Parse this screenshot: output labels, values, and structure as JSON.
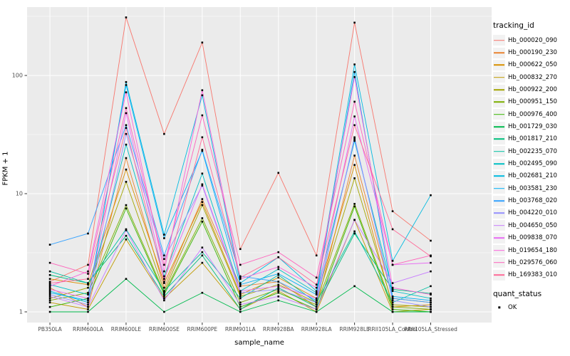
{
  "figure": {
    "y_axis": {
      "title": "FPKM + 1",
      "tick_labels": [
        "100",
        "10",
        "1"
      ],
      "tick_values": [
        100,
        10,
        1
      ]
    },
    "x_axis": {
      "title": "sample_name"
    },
    "legend": {
      "tracking_title": "tracking_id",
      "quant_title": "quant_status",
      "quant_items": [
        {
          "label": "OK",
          "marker": "black-square"
        }
      ]
    },
    "colors": {
      "panel_bg": "#EBEBEB",
      "grid": "#FFFFFF",
      "tick_text": "#4D4D4D",
      "tick_mark": "#333333",
      "point": "#000000"
    }
  },
  "chart_data": {
    "type": "line",
    "title": "",
    "xlabel": "sample_name",
    "ylabel": "FPKM + 1",
    "y_scale": "log10",
    "ylim": [
      1,
      400
    ],
    "y_ticks": [
      1,
      10,
      100
    ],
    "grid": "on",
    "legend_position": "right",
    "point_marker": {
      "shape": "square",
      "color": "#000000",
      "legend": "quant_status: OK"
    },
    "categories": [
      "PB350LA",
      "RRIM600LA",
      "RRIM600LE",
      "RRIM600SE",
      "RRIM600PE",
      "RRIM901LA",
      "RRIM928BA",
      "RRIM928LA",
      "RRIM928LE",
      "RRII105LA_Control",
      "RRII105LA_Stressed"
    ],
    "series": [
      {
        "name": "Hb_000020_090",
        "color": "#F8766D",
        "values": [
          1.8,
          2.5,
          310,
          32,
          190,
          3.4,
          15,
          3.0,
          280,
          7.1,
          4.0
        ]
      },
      {
        "name": "Hb_000190_230",
        "color": "#EA8331",
        "values": [
          1.6,
          1.1,
          20,
          1.6,
          9.0,
          1.65,
          1.8,
          1.1,
          21,
          1.3,
          1.2
        ]
      },
      {
        "name": "Hb_000622_050",
        "color": "#D89000",
        "values": [
          1.9,
          1.7,
          16,
          1.75,
          8.5,
          1.4,
          1.95,
          1.3,
          17.5,
          1.1,
          1.15
        ]
      },
      {
        "name": "Hb_000832_270",
        "color": "#C09B00",
        "values": [
          1.2,
          1.05,
          4.1,
          1.3,
          2.6,
          1.05,
          1.5,
          1.0,
          6.0,
          1.0,
          1.05
        ]
      },
      {
        "name": "Hb_000922_200",
        "color": "#A3A500",
        "values": [
          1.3,
          1.6,
          12.6,
          1.5,
          8.0,
          1.35,
          1.7,
          1.2,
          13.5,
          1.15,
          1.1
        ]
      },
      {
        "name": "Hb_000951_150",
        "color": "#7CAE00",
        "values": [
          1.25,
          1.45,
          8.0,
          1.45,
          6.2,
          1.2,
          1.55,
          1.15,
          8.2,
          1.1,
          1.05
        ]
      },
      {
        "name": "Hb_000976_400",
        "color": "#39B600",
        "values": [
          1.1,
          1.3,
          7.5,
          1.4,
          5.8,
          1.1,
          1.45,
          1.05,
          7.8,
          1.05,
          1.0
        ]
      },
      {
        "name": "Hb_001729_030",
        "color": "#00BB4E",
        "values": [
          1.0,
          1.0,
          1.9,
          1.0,
          1.45,
          1.0,
          1.25,
          1.0,
          1.65,
          1.0,
          1.0
        ]
      },
      {
        "name": "Hb_001817_210",
        "color": "#00BF7D",
        "values": [
          2.05,
          1.75,
          4.4,
          1.35,
          3.0,
          1.05,
          1.6,
          1.1,
          4.6,
          1.55,
          1.43
        ]
      },
      {
        "name": "Hb_002235_070",
        "color": "#00C1A3",
        "values": [
          2.2,
          1.75,
          5.0,
          1.5,
          3.2,
          1.3,
          2.05,
          1.2,
          4.8,
          1.2,
          1.65
        ]
      },
      {
        "name": "Hb_002495_090",
        "color": "#00BFC4",
        "values": [
          1.7,
          1.4,
          26,
          2.0,
          14.8,
          1.5,
          2.3,
          1.45,
          28,
          1.5,
          1.3
        ]
      },
      {
        "name": "Hb_002681_210",
        "color": "#00BAE0",
        "values": [
          1.5,
          1.2,
          88,
          4.5,
          68,
          1.75,
          2.9,
          1.5,
          124,
          2.7,
          9.7
        ]
      },
      {
        "name": "Hb_003581_230",
        "color": "#00B0F6",
        "values": [
          1.45,
          1.25,
          83,
          4.2,
          23,
          1.7,
          2.1,
          1.4,
          107,
          1.35,
          1.25
        ]
      },
      {
        "name": "Hb_003768_020",
        "color": "#35A2FF",
        "values": [
          3.7,
          4.6,
          38,
          3.0,
          23.5,
          2.0,
          1.8,
          1.25,
          29,
          1.3,
          1.2
        ]
      },
      {
        "name": "Hb_004220_010",
        "color": "#9590FF",
        "values": [
          1.4,
          1.15,
          32,
          2.8,
          11.7,
          1.45,
          1.55,
          1.2,
          30,
          1.25,
          1.1
        ]
      },
      {
        "name": "Hb_004650_050",
        "color": "#C77CFF",
        "values": [
          1.35,
          1.1,
          4.9,
          1.25,
          3.5,
          1.15,
          1.35,
          1.05,
          6.0,
          1.75,
          2.2
        ]
      },
      {
        "name": "Hb_009838_070",
        "color": "#E76BF3",
        "values": [
          1.55,
          1.3,
          48,
          1.9,
          12.0,
          1.5,
          1.65,
          1.3,
          45,
          2.5,
          2.6
        ]
      },
      {
        "name": "Hb_019654_180",
        "color": "#FA62DB",
        "values": [
          1.65,
          2.2,
          72,
          2.2,
          75,
          1.9,
          2.4,
          1.6,
          97,
          1.6,
          1.4
        ]
      },
      {
        "name": "Hb_029576_060",
        "color": "#FF62BC",
        "values": [
          2.6,
          2.1,
          53,
          2.5,
          46,
          2.5,
          3.2,
          1.95,
          60,
          2.5,
          3.0
        ]
      },
      {
        "name": "Hb_169383_010",
        "color": "#FF6A98",
        "values": [
          1.75,
          1.9,
          36,
          1.8,
          30,
          1.95,
          2.9,
          1.7,
          38,
          5.0,
          2.95
        ]
      }
    ]
  }
}
